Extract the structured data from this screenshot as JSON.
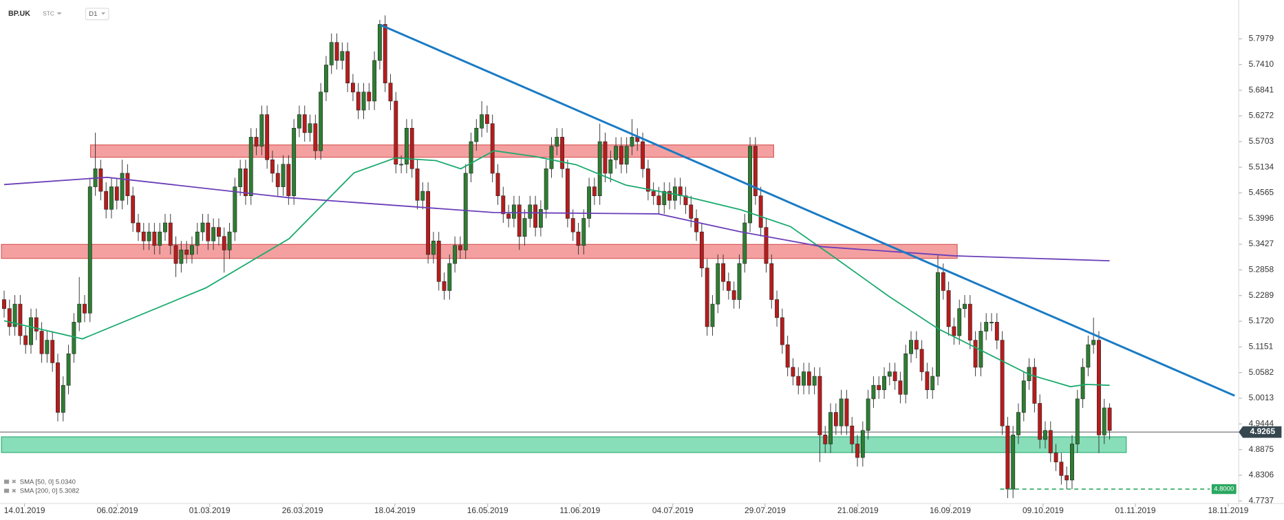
{
  "header": {
    "symbol": "BP.UK",
    "type": "STC",
    "interval": "D1"
  },
  "chart_data": {
    "type": "candlestick",
    "ylim": [
      4.768,
      5.884
    ],
    "yticks": [
      {
        "value": 5.7979,
        "label": "5.7979"
      },
      {
        "value": 5.741,
        "label": "5.7410"
      },
      {
        "value": 5.6841,
        "label": "5.6841"
      },
      {
        "value": 5.6272,
        "label": "5.6272"
      },
      {
        "value": 5.5703,
        "label": "5.5703"
      },
      {
        "value": 5.5134,
        "label": "5.5134"
      },
      {
        "value": 5.4565,
        "label": "5.4565"
      },
      {
        "value": 5.3996,
        "label": "5.3996"
      },
      {
        "value": 5.3427,
        "label": "5.3427"
      },
      {
        "value": 5.2858,
        "label": "5.2858"
      },
      {
        "value": 5.2289,
        "label": "5.2289"
      },
      {
        "value": 5.172,
        "label": "5.1720"
      },
      {
        "value": 5.1151,
        "label": "5.1151"
      },
      {
        "value": 5.0582,
        "label": "5.0582"
      },
      {
        "value": 5.0013,
        "label": "5.0013"
      },
      {
        "value": 4.9444,
        "label": "4.9444"
      },
      {
        "value": 4.8875,
        "label": "4.8875"
      },
      {
        "value": 4.8306,
        "label": "4.8306"
      },
      {
        "value": 4.7737,
        "label": "4.7737"
      }
    ],
    "xlim": [
      -0.77,
      230.06
    ],
    "xticks": [
      {
        "value": 3.8,
        "label": "14.01.2019"
      },
      {
        "value": 21.1,
        "label": "06.02.2019"
      },
      {
        "value": 38.3,
        "label": "01.03.2019"
      },
      {
        "value": 55.6,
        "label": "26.03.2019"
      },
      {
        "value": 72.8,
        "label": "18.04.2019"
      },
      {
        "value": 90.1,
        "label": "16.05.2019"
      },
      {
        "value": 107.3,
        "label": "11.06.2019"
      },
      {
        "value": 124.6,
        "label": "04.07.2019"
      },
      {
        "value": 141.8,
        "label": "29.07.2019"
      },
      {
        "value": 159.1,
        "label": "21.08.2019"
      },
      {
        "value": 176.3,
        "label": "16.09.2019"
      },
      {
        "value": 193.6,
        "label": "09.10.2019"
      },
      {
        "value": 210.8,
        "label": "01.11.2019"
      },
      {
        "value": 228.1,
        "label": "18.11.2019"
      }
    ],
    "up_color": "#2e7d32",
    "down_color": "#b71c1c",
    "open": [
      5.22,
      5.2,
      5.16,
      5.21,
      5.14,
      5.12,
      5.18,
      5.15,
      5.1,
      5.13,
      5.08,
      4.97,
      5.03,
      5.1,
      5.17,
      5.21,
      5.19,
      5.47,
      5.51,
      5.46,
      5.42,
      5.47,
      5.44,
      5.5,
      5.45,
      5.39,
      5.37,
      5.35,
      5.37,
      5.34,
      5.37,
      5.39,
      5.34,
      5.3,
      5.33,
      5.32,
      5.34,
      5.37,
      5.39,
      5.35,
      5.38,
      5.36,
      5.33,
      5.37,
      5.47,
      5.51,
      5.45,
      5.58,
      5.56,
      5.63,
      5.53,
      5.5,
      5.47,
      5.52,
      5.45,
      5.6,
      5.63,
      5.59,
      5.61,
      5.55,
      5.68,
      5.74,
      5.79,
      5.75,
      5.77,
      5.7,
      5.68,
      5.64,
      5.68,
      5.66,
      5.75,
      5.83,
      5.7,
      5.66,
      5.52,
      5.52,
      5.6,
      5.51,
      5.44,
      5.46,
      5.32,
      5.35,
      5.26,
      5.24,
      5.3,
      5.34,
      5.33,
      5.5,
      5.57,
      5.6,
      5.63,
      5.61,
      5.5,
      5.45,
      5.41,
      5.4,
      5.43,
      5.36,
      5.4,
      5.43,
      5.38,
      5.42,
      5.51,
      5.56,
      5.58,
      5.51,
      5.4,
      5.37,
      5.34,
      5.4,
      5.47,
      5.45,
      5.57,
      5.5,
      5.53,
      5.56,
      5.52,
      5.56,
      5.58,
      5.57,
      5.51,
      5.46,
      5.45,
      5.43,
      5.46,
      5.44,
      5.47,
      5.45,
      5.43,
      5.4,
      5.37,
      5.29,
      5.16,
      5.21,
      5.3,
      5.26,
      5.24,
      5.22,
      5.3,
      5.39,
      5.56,
      5.45,
      5.38,
      5.3,
      5.22,
      5.18,
      5.12,
      5.07,
      5.05,
      5.03,
      5.06,
      5.03,
      5.05,
      4.92,
      4.9,
      4.97,
      4.94,
      5.0,
      4.94,
      4.9,
      4.87,
      4.93,
      5.0,
      5.03,
      5.02,
      5.05,
      5.06,
      5.04,
      5.01,
      5.1,
      5.13,
      5.11,
      5.06,
      5.02,
      5.05,
      5.28,
      5.24,
      5.16,
      5.14,
      5.2,
      5.21,
      5.13,
      5.07,
      5.15,
      5.17,
      5.17,
      5.13,
      4.94,
      4.8,
      4.92,
      4.97,
      5.04,
      5.07,
      4.99,
      4.91,
      4.93,
      4.88,
      4.86,
      4.83,
      4.82,
      4.9,
      5.0,
      5.07,
      5.12,
      5.13,
      4.92,
      4.98
    ],
    "high": [
      5.24,
      5.22,
      5.23,
      5.23,
      5.16,
      5.2,
      5.2,
      5.17,
      5.15,
      5.15,
      5.1,
      5.05,
      5.12,
      5.19,
      5.27,
      5.23,
      5.49,
      5.59,
      5.53,
      5.48,
      5.49,
      5.49,
      5.53,
      5.52,
      5.47,
      5.41,
      5.39,
      5.39,
      5.39,
      5.39,
      5.41,
      5.41,
      5.36,
      5.35,
      5.35,
      5.36,
      5.39,
      5.41,
      5.41,
      5.4,
      5.4,
      5.38,
      5.39,
      5.49,
      5.53,
      5.53,
      5.6,
      5.6,
      5.65,
      5.65,
      5.55,
      5.52,
      5.54,
      5.54,
      5.62,
      5.65,
      5.65,
      5.63,
      5.63,
      5.7,
      5.76,
      5.81,
      5.81,
      5.79,
      5.79,
      5.72,
      5.7,
      5.7,
      5.7,
      5.77,
      5.84,
      5.85,
      5.72,
      5.68,
      5.54,
      5.62,
      5.62,
      5.53,
      5.48,
      5.48,
      5.37,
      5.37,
      5.28,
      5.32,
      5.36,
      5.36,
      5.52,
      5.59,
      5.62,
      5.66,
      5.65,
      5.63,
      5.52,
      5.47,
      5.43,
      5.45,
      5.45,
      5.42,
      5.45,
      5.45,
      5.44,
      5.53,
      5.58,
      5.6,
      5.6,
      5.53,
      5.42,
      5.39,
      5.42,
      5.49,
      5.49,
      5.61,
      5.59,
      5.55,
      5.58,
      5.58,
      5.58,
      5.62,
      5.6,
      5.59,
      5.53,
      5.48,
      5.47,
      5.48,
      5.48,
      5.49,
      5.49,
      5.47,
      5.45,
      5.42,
      5.39,
      5.31,
      5.23,
      5.32,
      5.32,
      5.28,
      5.26,
      5.32,
      5.41,
      5.58,
      5.58,
      5.47,
      5.4,
      5.32,
      5.24,
      5.2,
      5.14,
      5.09,
      5.07,
      5.08,
      5.08,
      5.07,
      5.07,
      4.94,
      4.99,
      4.99,
      5.02,
      5.02,
      4.96,
      4.92,
      4.95,
      5.02,
      5.05,
      5.05,
      5.07,
      5.08,
      5.08,
      5.06,
      5.12,
      5.15,
      5.15,
      5.13,
      5.08,
      5.07,
      5.32,
      5.3,
      5.26,
      5.18,
      5.22,
      5.23,
      5.23,
      5.15,
      5.17,
      5.19,
      5.19,
      5.19,
      5.15,
      4.96,
      4.94,
      4.99,
      5.06,
      5.09,
      5.09,
      5.01,
      4.95,
      4.95,
      4.9,
      4.88,
      4.85,
      4.92,
      5.02,
      5.09,
      5.14,
      5.18,
      5.15,
      5.0,
      4.99
    ],
    "low": [
      5.18,
      5.14,
      5.14,
      5.12,
      5.1,
      5.1,
      5.13,
      5.08,
      5.08,
      5.06,
      4.95,
      4.95,
      5.01,
      5.08,
      5.15,
      5.17,
      5.17,
      5.45,
      5.44,
      5.4,
      5.4,
      5.42,
      5.42,
      5.43,
      5.37,
      5.35,
      5.33,
      5.33,
      5.32,
      5.32,
      5.35,
      5.32,
      5.27,
      5.28,
      5.3,
      5.3,
      5.32,
      5.35,
      5.33,
      5.33,
      5.34,
      5.28,
      5.31,
      5.35,
      5.45,
      5.43,
      5.43,
      5.54,
      5.54,
      5.51,
      5.48,
      5.45,
      5.45,
      5.43,
      5.43,
      5.58,
      5.57,
      5.57,
      5.53,
      5.53,
      5.66,
      5.72,
      5.73,
      5.73,
      5.68,
      5.66,
      5.62,
      5.62,
      5.64,
      5.64,
      5.73,
      5.68,
      5.64,
      5.5,
      5.5,
      5.5,
      5.49,
      5.42,
      5.42,
      5.3,
      5.3,
      5.24,
      5.22,
      5.22,
      5.28,
      5.31,
      5.31,
      5.48,
      5.55,
      5.58,
      5.59,
      5.48,
      5.43,
      5.39,
      5.38,
      5.38,
      5.33,
      5.34,
      5.38,
      5.36,
      5.36,
      5.4,
      5.49,
      5.54,
      5.49,
      5.38,
      5.35,
      5.32,
      5.32,
      5.38,
      5.43,
      5.43,
      5.48,
      5.48,
      5.51,
      5.5,
      5.5,
      5.54,
      5.55,
      5.49,
      5.44,
      5.43,
      5.41,
      5.41,
      5.42,
      5.42,
      5.43,
      5.41,
      5.38,
      5.35,
      5.27,
      5.14,
      5.14,
      5.19,
      5.24,
      5.22,
      5.2,
      5.2,
      5.28,
      5.37,
      5.43,
      5.36,
      5.28,
      5.2,
      5.16,
      5.1,
      5.05,
      5.03,
      5.01,
      5.01,
      5.01,
      5.01,
      4.86,
      4.88,
      4.88,
      4.92,
      4.92,
      4.92,
      4.88,
      4.85,
      4.85,
      4.91,
      4.98,
      5.0,
      5.0,
      5.03,
      5.02,
      4.99,
      4.99,
      5.08,
      5.09,
      5.04,
      5.0,
      5.0,
      5.03,
      5.22,
      5.14,
      5.12,
      5.12,
      5.18,
      5.11,
      5.05,
      5.05,
      5.13,
      5.15,
      5.11,
      4.92,
      4.78,
      4.78,
      4.9,
      4.95,
      5.02,
      4.97,
      4.89,
      4.89,
      4.86,
      4.84,
      4.81,
      4.8,
      4.8,
      4.88,
      4.98,
      5.05,
      5.1,
      4.88,
      4.9,
      4.91
    ],
    "close": [
      5.2,
      5.16,
      5.21,
      5.14,
      5.12,
      5.18,
      5.15,
      5.1,
      5.13,
      5.08,
      4.97,
      5.03,
      5.1,
      5.17,
      5.21,
      5.19,
      5.47,
      5.51,
      5.46,
      5.42,
      5.47,
      5.44,
      5.5,
      5.45,
      5.39,
      5.37,
      5.35,
      5.37,
      5.34,
      5.37,
      5.39,
      5.34,
      5.3,
      5.33,
      5.32,
      5.34,
      5.37,
      5.39,
      5.35,
      5.38,
      5.36,
      5.33,
      5.37,
      5.47,
      5.51,
      5.45,
      5.58,
      5.56,
      5.63,
      5.53,
      5.5,
      5.47,
      5.52,
      5.45,
      5.6,
      5.63,
      5.59,
      5.61,
      5.55,
      5.68,
      5.74,
      5.79,
      5.75,
      5.77,
      5.7,
      5.68,
      5.64,
      5.68,
      5.66,
      5.75,
      5.83,
      5.7,
      5.66,
      5.52,
      5.52,
      5.6,
      5.51,
      5.44,
      5.46,
      5.32,
      5.35,
      5.26,
      5.24,
      5.3,
      5.34,
      5.33,
      5.5,
      5.57,
      5.6,
      5.63,
      5.61,
      5.5,
      5.45,
      5.41,
      5.4,
      5.43,
      5.36,
      5.4,
      5.43,
      5.38,
      5.42,
      5.51,
      5.56,
      5.58,
      5.51,
      5.4,
      5.37,
      5.34,
      5.4,
      5.47,
      5.45,
      5.57,
      5.5,
      5.53,
      5.56,
      5.52,
      5.56,
      5.58,
      5.57,
      5.51,
      5.46,
      5.45,
      5.43,
      5.46,
      5.44,
      5.47,
      5.45,
      5.43,
      5.4,
      5.37,
      5.29,
      5.16,
      5.21,
      5.3,
      5.26,
      5.24,
      5.22,
      5.3,
      5.39,
      5.56,
      5.45,
      5.38,
      5.3,
      5.22,
      5.18,
      5.12,
      5.07,
      5.05,
      5.03,
      5.06,
      5.03,
      5.05,
      4.92,
      4.9,
      4.97,
      4.94,
      5.0,
      4.94,
      4.9,
      4.87,
      4.93,
      5.0,
      5.03,
      5.02,
      5.05,
      5.06,
      5.04,
      5.01,
      5.1,
      5.13,
      5.11,
      5.06,
      5.02,
      5.05,
      5.28,
      5.24,
      5.16,
      5.14,
      5.2,
      5.21,
      5.13,
      5.07,
      5.15,
      5.17,
      5.17,
      5.13,
      4.94,
      4.8,
      4.92,
      4.97,
      5.04,
      5.07,
      4.99,
      4.91,
      4.93,
      4.88,
      4.86,
      4.83,
      4.82,
      4.9,
      5.0,
      5.07,
      5.12,
      5.13,
      4.92,
      4.98,
      4.93
    ],
    "series": [
      {
        "name": "SMA [50, 0]",
        "legend": "SMA [50, 0] 5.0340",
        "color": "#1aaa6e",
        "x": [
          0,
          14.6,
          37.6,
          53.1,
          65.2,
          72.9,
          80.5,
          85.1,
          91.3,
          99,
          106.6,
          115.8,
          126.5,
          137.3,
          146.5,
          154.2,
          164.9,
          174.1,
          183.3,
          191,
          198.7,
          201.7,
          206
        ],
        "values": [
          5.173,
          5.133,
          5.246,
          5.355,
          5.501,
          5.534,
          5.528,
          5.51,
          5.55,
          5.537,
          5.519,
          5.474,
          5.45,
          5.419,
          5.382,
          5.318,
          5.227,
          5.155,
          5.1,
          5.054,
          5.027,
          5.032,
          5.03
        ]
      },
      {
        "name": "SMA [200, 0]",
        "legend": "SMA [200, 0] 5.3082",
        "color": "#6a3db8",
        "x": [
          0,
          19.2,
          52.9,
          91.3,
          121.9,
          137.3,
          152.6,
          177.1,
          206
        ],
        "values": [
          5.475,
          5.491,
          5.446,
          5.413,
          5.41,
          5.37,
          5.337,
          5.317,
          5.306
        ]
      }
    ],
    "zones": [
      {
        "color": "#f08080",
        "x": [
          16.1,
          143.4
        ],
        "values": [
          5.5628,
          5.5355
        ]
      },
      {
        "color": "#f08080",
        "x": [
          -0.5,
          177.6
        ],
        "values": [
          5.3423,
          5.3113
        ]
      },
      {
        "color": "#5fd3a0",
        "x": [
          -0.5,
          209.1
        ],
        "values": [
          4.9158,
          4.8811
        ]
      }
    ],
    "trendline": {
      "color": "#1a7bc4",
      "x": [
        70.1,
        229.3
      ],
      "values": [
        5.829,
        5.007
      ]
    },
    "level": {
      "color": "#2aa860",
      "x": [
        185.6,
        224.7
      ],
      "value": 4.8,
      "label": "4.8000"
    },
    "last_price": {
      "value": 4.9265,
      "label": "4.9265"
    }
  }
}
